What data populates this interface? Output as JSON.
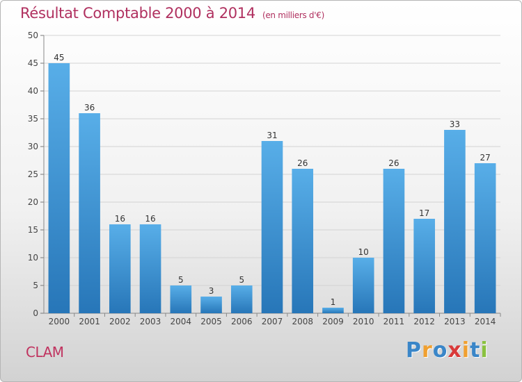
{
  "title": "Résultat Comptable 2000 à 2014",
  "subtitle": "(en milliers d'€)",
  "commune": "CLAM",
  "logo": {
    "letters": [
      "P",
      "r",
      "o",
      "x",
      "i",
      "t",
      "i"
    ],
    "colors": [
      "#3a86c8",
      "#f0a030",
      "#3a86c8",
      "#d93a3a",
      "#f0a030",
      "#3a86c8",
      "#8ac13f"
    ]
  },
  "chart_data": {
    "type": "bar",
    "title": "Résultat Comptable 2000 à 2014",
    "subtitle": "(en milliers d'€)",
    "categories": [
      "2000",
      "2001",
      "2002",
      "2003",
      "2004",
      "2005",
      "2006",
      "2007",
      "2008",
      "2009",
      "2010",
      "2011",
      "2012",
      "2013",
      "2014"
    ],
    "values": [
      45,
      36,
      16,
      16,
      5,
      3,
      5,
      31,
      26,
      1,
      10,
      26,
      17,
      33,
      27
    ],
    "ylim": [
      0,
      50
    ],
    "yticks": [
      0,
      5,
      10,
      15,
      20,
      25,
      30,
      35,
      40,
      45,
      50
    ],
    "grid": true,
    "bar_color": "#3d93d8",
    "bar_color_dark": "#2a78bd"
  }
}
